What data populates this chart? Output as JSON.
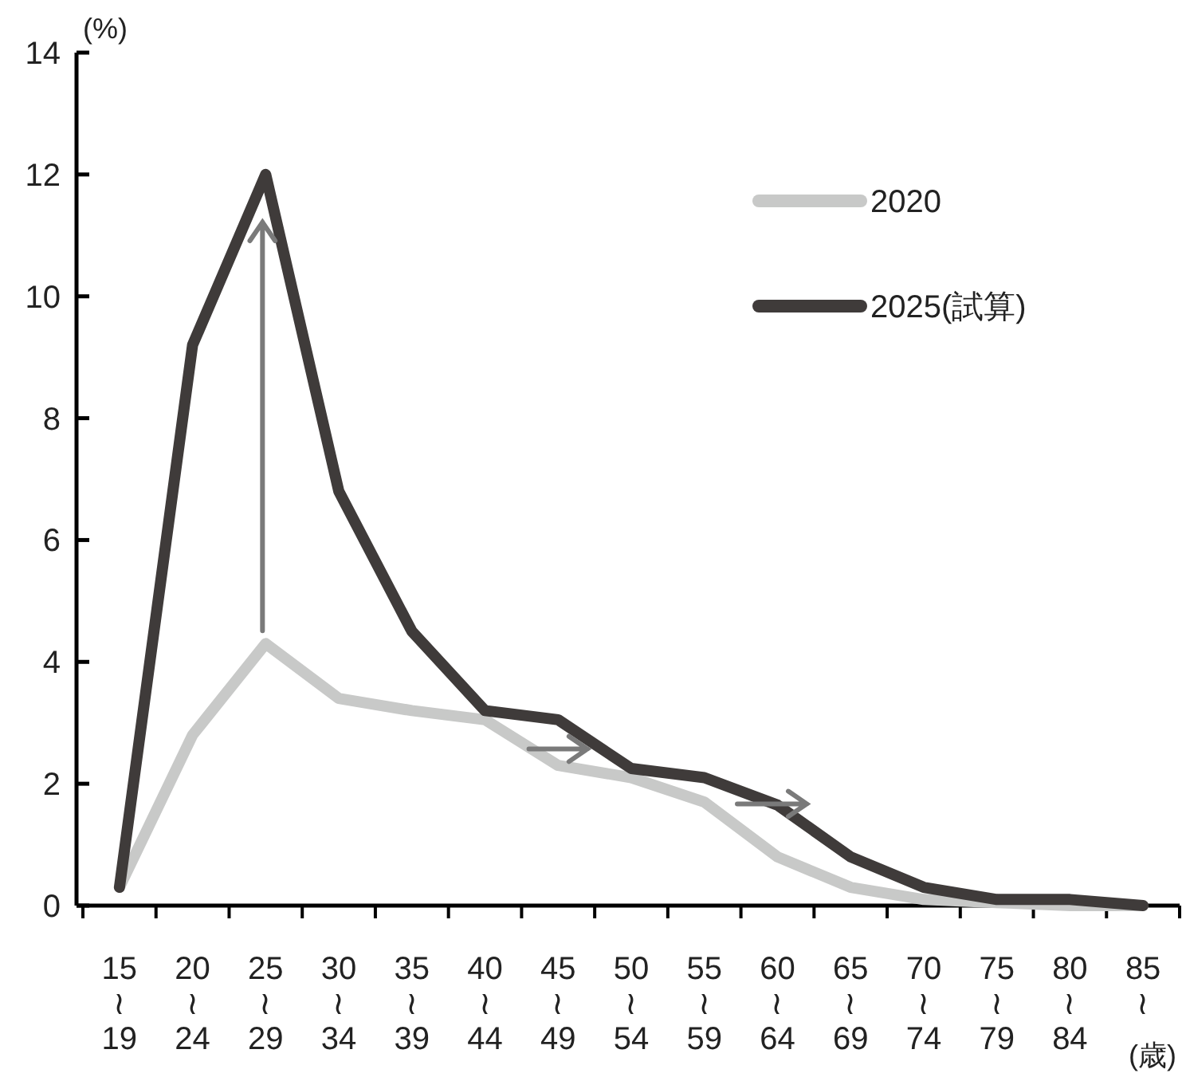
{
  "chart_data": {
    "type": "line",
    "ylabel": "(%)",
    "xlabel": "(歳)",
    "categories": [
      "15\n≀\n19",
      "20\n≀\n24",
      "25\n≀\n29",
      "30\n≀\n34",
      "35\n≀\n39",
      "40\n≀\n44",
      "45\n≀\n49",
      "50\n≀\n54",
      "55\n≀\n59",
      "60\n≀\n64",
      "65\n≀\n69",
      "70\n≀\n74",
      "75\n≀\n79",
      "80\n≀\n84",
      "85\n≀"
    ],
    "series": [
      {
        "name": "2020",
        "color": "#c8c9c8",
        "values": [
          0.3,
          2.8,
          4.3,
          3.4,
          3.2,
          3.05,
          2.3,
          2.1,
          1.7,
          0.8,
          0.3,
          0.1,
          0.05,
          0.0,
          0.0
        ]
      },
      {
        "name": "2025(試算)",
        "color": "#3f3b3a",
        "values": [
          0.3,
          9.2,
          12.0,
          6.8,
          4.5,
          3.2,
          3.05,
          2.25,
          2.1,
          1.65,
          0.8,
          0.3,
          0.1,
          0.1,
          0.0
        ]
      }
    ],
    "ylim": [
      0,
      14
    ],
    "yticks": [
      0,
      2,
      4,
      6,
      8,
      10,
      12,
      14
    ],
    "grid": false,
    "legend": "top right",
    "marker": "none",
    "line_style": "solid"
  }
}
